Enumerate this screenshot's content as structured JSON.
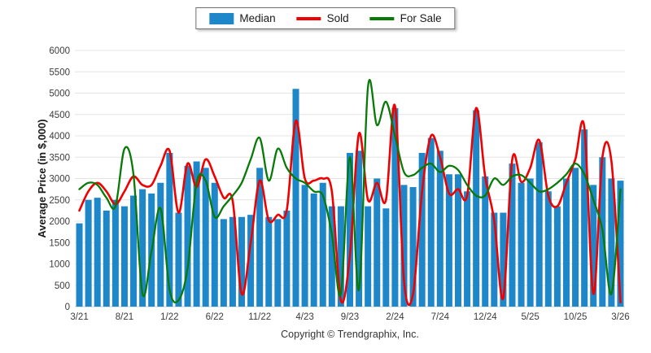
{
  "legend": {
    "items": [
      {
        "label": "Median",
        "type": "bar",
        "color": "#1e87c9"
      },
      {
        "label": "Sold",
        "type": "line",
        "color": "#f00000"
      },
      {
        "label": "For Sale",
        "type": "line",
        "color": "#077a07"
      }
    ]
  },
  "footer": {
    "text": "Copyright © Trendgraphix, Inc."
  },
  "chart_data": {
    "type": "bar",
    "title": "",
    "xlabel": "",
    "ylabel": "Average Price (in $,000)",
    "ylim": [
      0,
      6000
    ],
    "ytick_step": 500,
    "grid": true,
    "legend_position": "top-center",
    "x_label_every": 5,
    "categories": [
      "3/21",
      "4/21",
      "5/21",
      "6/21",
      "7/21",
      "8/21",
      "9/21",
      "10/21",
      "11/21",
      "12/21",
      "1/22",
      "2/22",
      "3/22",
      "4/22",
      "5/22",
      "6/22",
      "7/22",
      "8/22",
      "9/22",
      "10/22",
      "11/22",
      "12/22",
      "1/23",
      "2/23",
      "3/23",
      "4/23",
      "5/23",
      "6/23",
      "7/23",
      "8/23",
      "9/23",
      "10/23",
      "11/23",
      "12/23",
      "1/24",
      "2/24",
      "3/24",
      "4/24",
      "5/24",
      "6/24",
      "7/24",
      "8/24",
      "9/24",
      "10/24",
      "11/24",
      "12/24",
      "1/25",
      "2/25",
      "3/25",
      "4/25",
      "5/25",
      "6/25",
      "7/25",
      "8/25",
      "9/25",
      "10/25",
      "11/25",
      "12/25",
      "1/26",
      "2/26",
      "3/26"
    ],
    "series": [
      {
        "name": "Median",
        "type": "bar",
        "color": "#1e87c9",
        "values": [
          1950,
          2500,
          2550,
          2250,
          2500,
          2350,
          2600,
          2750,
          2650,
          2900,
          3600,
          2200,
          3300,
          3400,
          3250,
          2900,
          2050,
          2100,
          2100,
          2150,
          3250,
          2100,
          2050,
          2250,
          5100,
          2850,
          2650,
          2900,
          2350,
          2350,
          3600,
          3650,
          2350,
          3000,
          2300,
          4650,
          2850,
          2800,
          3600,
          3950,
          3650,
          3100,
          3100,
          2700,
          4600,
          3050,
          2200,
          2200,
          3350,
          2900,
          3000,
          3850,
          2700,
          2350,
          3000,
          3250,
          4150,
          2850,
          3500,
          3000,
          2950
        ]
      },
      {
        "name": "Sold",
        "type": "line",
        "color": "#f00000",
        "values": [
          2250,
          2700,
          2900,
          2700,
          2400,
          2700,
          3050,
          2850,
          2850,
          3300,
          3650,
          2200,
          3350,
          2800,
          3450,
          3050,
          2550,
          2480,
          300,
          1500,
          2950,
          2020,
          2150,
          2260,
          4350,
          3000,
          2950,
          3000,
          2700,
          150,
          1200,
          4050,
          2500,
          2900,
          2500,
          4700,
          600,
          300,
          2700,
          4000,
          3500,
          2650,
          2750,
          2600,
          4650,
          3050,
          2020,
          200,
          3450,
          2920,
          3250,
          3900,
          2600,
          2350,
          2900,
          3450,
          4200,
          300,
          3500,
          3400,
          100
        ]
      },
      {
        "name": "For Sale",
        "type": "line",
        "color": "#077a07",
        "values": [
          2750,
          2900,
          2850,
          2550,
          2350,
          3700,
          3100,
          300,
          1300,
          2300,
          400,
          150,
          900,
          2900,
          2950,
          2100,
          2350,
          2600,
          2900,
          3450,
          3950,
          2950,
          3700,
          3250,
          3000,
          2900,
          2700,
          2600,
          1700,
          300,
          3500,
          400,
          5150,
          4250,
          4800,
          4000,
          3150,
          3080,
          3250,
          3350,
          3150,
          3300,
          3200,
          2850,
          2600,
          2600,
          3000,
          2850,
          3050,
          3080,
          2900,
          2700,
          2750,
          2900,
          3100,
          3350,
          3100,
          2500,
          1800,
          300,
          2750
        ]
      }
    ]
  },
  "axis_style": {
    "grid_color": "#e4e4e4",
    "baseline_color": "#cccccc",
    "tick_label_color": "#3c3c3c",
    "axis_title_color": "#1a1a1a"
  }
}
